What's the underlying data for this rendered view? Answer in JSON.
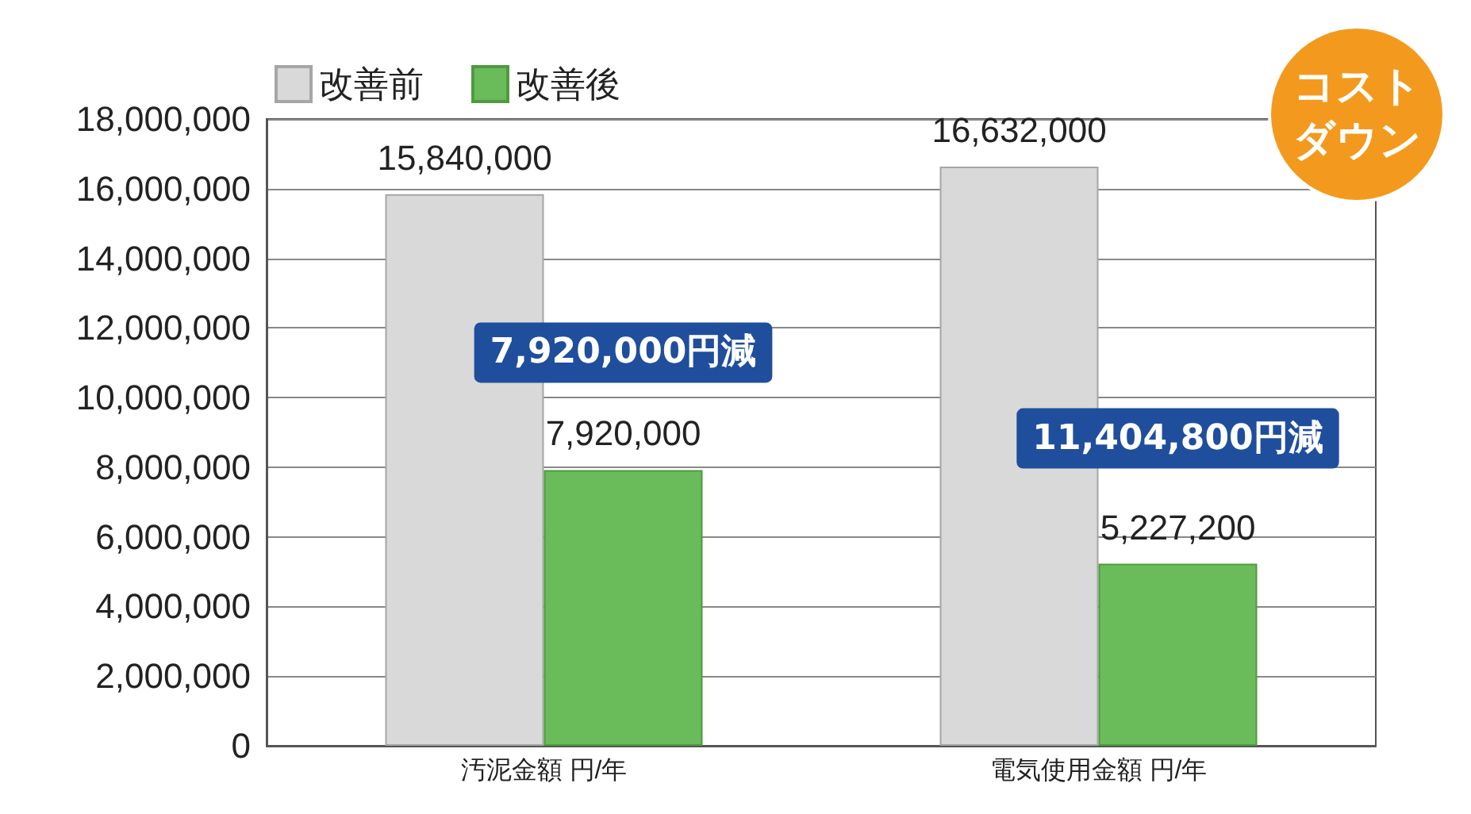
{
  "chart_data": {
    "type": "bar",
    "categories": [
      "汚泥金額 円/年",
      "電気使用金額 円/年"
    ],
    "series": [
      {
        "name": "改善前",
        "color": "#d9d9d9",
        "values": [
          15840000,
          16632000
        ],
        "value_labels": [
          "15,840,000",
          "16,632,000"
        ]
      },
      {
        "name": "改善後",
        "color": "#6abb5a",
        "values": [
          7920000,
          5227200
        ],
        "value_labels": [
          "7,920,000",
          "5,227,200"
        ]
      }
    ],
    "ylim": [
      0,
      18000000
    ],
    "yticks": [
      {
        "value": 0,
        "label": "0"
      },
      {
        "value": 2000000,
        "label": "2,000,000"
      },
      {
        "value": 4000000,
        "label": "4,000,000"
      },
      {
        "value": 6000000,
        "label": "6,000,000"
      },
      {
        "value": 8000000,
        "label": "8,000,000"
      },
      {
        "value": 10000000,
        "label": "10,000,000"
      },
      {
        "value": 12000000,
        "label": "12,000,000"
      },
      {
        "value": 14000000,
        "label": "14,000,000"
      },
      {
        "value": 16000000,
        "label": "16,000,000"
      },
      {
        "value": 18000000,
        "label": "18,000,000"
      }
    ],
    "grid": "y",
    "legend": "top left",
    "annotations": [
      "7,920,000円減",
      "11,404,800円減",
      "コストダウン"
    ]
  }
}
